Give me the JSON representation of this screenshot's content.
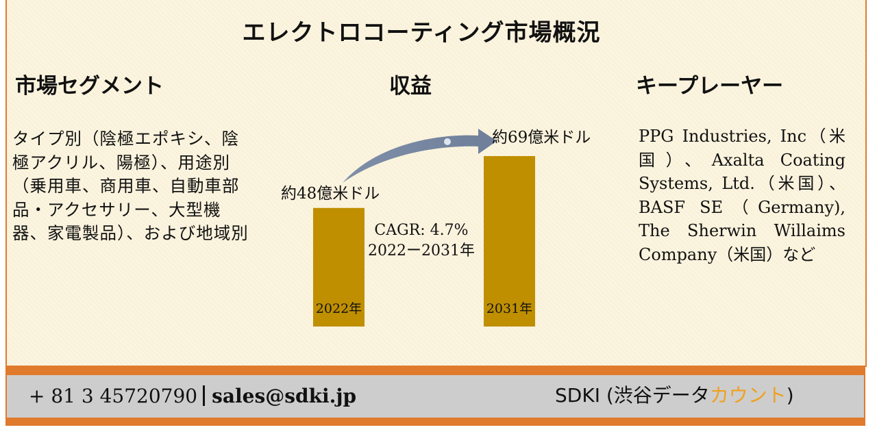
{
  "title": "エレクトロコーティング市場概況",
  "headings": {
    "segment": "市場セグメント",
    "revenue": "収益",
    "key_players": "キープレーヤー"
  },
  "segment_text": "タイプ別（陰極エポキシ、陰極アクリル、陽極）、用途別（乗用車、商用車、自動車部品・アクセサリー、大型機器、家電製品）、および地域別",
  "key_players_text": "PPG Industries, Inc（米国）、Axalta Coating Systems, Ltd.（米国）、BASF SE（Germany), The Sherwin Willaims Company（米国）など",
  "cagr": {
    "line1": "CAGR: 4.7%",
    "line2": "2022ー2031年"
  },
  "chart_data": {
    "type": "bar",
    "categories": [
      "2022年",
      "2031年"
    ],
    "values": [
      48,
      69
    ],
    "data_labels": [
      "約48億米ドル",
      "約69億米ドル"
    ],
    "bar_color": "#bf8f00"
  },
  "footer": {
    "phone": "+ 81 3 45720790",
    "email": "sales@sdki.jp",
    "brand_prefix": "SDKI (渋谷データ",
    "brand_accent": "カウント",
    "brand_suffix": ")",
    "accent_color": "#f0a020",
    "border_color": "#e07a2c"
  }
}
